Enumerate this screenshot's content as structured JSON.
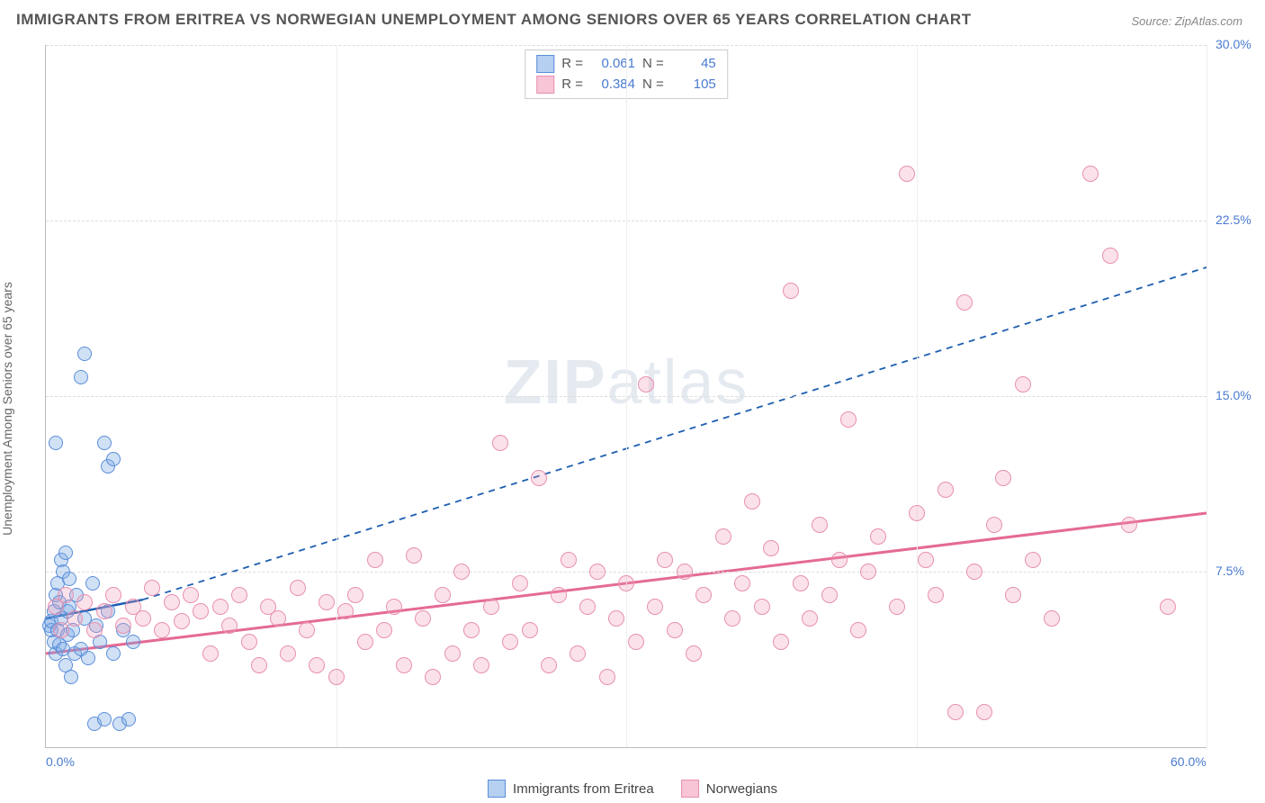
{
  "title": "IMMIGRANTS FROM ERITREA VS NORWEGIAN UNEMPLOYMENT AMONG SENIORS OVER 65 YEARS CORRELATION CHART",
  "source_label": "Source: ",
  "source_value": "ZipAtlas.com",
  "y_axis_label": "Unemployment Among Seniors over 65 years",
  "watermark_pre": "ZIP",
  "watermark_post": "atlas",
  "chart": {
    "type": "scatter",
    "xlim": [
      0,
      60
    ],
    "ylim": [
      0,
      30
    ],
    "x_ticks": [
      0,
      15,
      30,
      45,
      60
    ],
    "x_tick_labels": [
      "0.0%",
      "",
      "",
      "",
      "60.0%"
    ],
    "y_ticks": [
      7.5,
      15.0,
      22.5,
      30.0
    ],
    "y_tick_labels": [
      "7.5%",
      "15.0%",
      "22.5%",
      "30.0%"
    ],
    "grid_color": "#dddddd",
    "background_color": "#ffffff",
    "marker_radius_blue": 7,
    "marker_radius_pink": 8,
    "series": [
      {
        "name": "Immigrants from Eritrea",
        "color_fill": "rgba(120,170,230,0.35)",
        "color_stroke": "#5a8dd8",
        "R": 0.061,
        "N": 45,
        "trend": {
          "x1": 0,
          "y1": 5.5,
          "x2": 5,
          "y2": 6.3,
          "solid": true,
          "dash_x2": 60,
          "dash_y2": 20.5,
          "stroke": "#1f5fb0",
          "width": 2.5
        },
        "points": [
          [
            0.2,
            5.2
          ],
          [
            0.3,
            5.0
          ],
          [
            0.3,
            5.4
          ],
          [
            0.4,
            4.5
          ],
          [
            0.4,
            5.8
          ],
          [
            0.5,
            6.5
          ],
          [
            0.5,
            4.0
          ],
          [
            0.6,
            7.0
          ],
          [
            0.6,
            5.0
          ],
          [
            0.7,
            4.4
          ],
          [
            0.7,
            6.2
          ],
          [
            0.8,
            8.0
          ],
          [
            0.8,
            5.5
          ],
          [
            0.9,
            4.2
          ],
          [
            0.9,
            7.5
          ],
          [
            1.0,
            8.3
          ],
          [
            1.0,
            3.5
          ],
          [
            1.1,
            5.8
          ],
          [
            1.1,
            4.8
          ],
          [
            1.2,
            6.0
          ],
          [
            1.2,
            7.2
          ],
          [
            1.3,
            3.0
          ],
          [
            1.4,
            5.0
          ],
          [
            1.5,
            4.0
          ],
          [
            1.6,
            6.5
          ],
          [
            1.8,
            4.2
          ],
          [
            2.0,
            5.5
          ],
          [
            2.2,
            3.8
          ],
          [
            2.4,
            7.0
          ],
          [
            2.5,
            1.0
          ],
          [
            2.6,
            5.2
          ],
          [
            2.8,
            4.5
          ],
          [
            3.0,
            1.2
          ],
          [
            3.2,
            5.8
          ],
          [
            3.5,
            4.0
          ],
          [
            3.8,
            1.0
          ],
          [
            4.0,
            5.0
          ],
          [
            4.3,
            1.2
          ],
          [
            4.5,
            4.5
          ],
          [
            2.0,
            16.8
          ],
          [
            1.8,
            15.8
          ],
          [
            3.0,
            13.0
          ],
          [
            3.2,
            12.0
          ],
          [
            3.5,
            12.3
          ],
          [
            0.5,
            13.0
          ]
        ]
      },
      {
        "name": "Norwegians",
        "color_fill": "rgba(240,150,180,0.28)",
        "color_stroke": "#e890b0",
        "R": 0.384,
        "N": 105,
        "trend": {
          "x1": 0,
          "y1": 4.0,
          "x2": 60,
          "y2": 10.0,
          "solid": true,
          "stroke": "#e46a96",
          "width": 3
        },
        "points": [
          [
            0.5,
            6.0
          ],
          [
            0.8,
            5.0
          ],
          [
            1.0,
            6.5
          ],
          [
            1.5,
            5.5
          ],
          [
            2.0,
            6.2
          ],
          [
            2.5,
            5.0
          ],
          [
            3.0,
            5.8
          ],
          [
            3.5,
            6.5
          ],
          [
            4.0,
            5.2
          ],
          [
            4.5,
            6.0
          ],
          [
            5.0,
            5.5
          ],
          [
            5.5,
            6.8
          ],
          [
            6.0,
            5.0
          ],
          [
            6.5,
            6.2
          ],
          [
            7.0,
            5.4
          ],
          [
            7.5,
            6.5
          ],
          [
            8.0,
            5.8
          ],
          [
            8.5,
            4.0
          ],
          [
            9.0,
            6.0
          ],
          [
            9.5,
            5.2
          ],
          [
            10.0,
            6.5
          ],
          [
            10.5,
            4.5
          ],
          [
            11.0,
            3.5
          ],
          [
            11.5,
            6.0
          ],
          [
            12.0,
            5.5
          ],
          [
            12.5,
            4.0
          ],
          [
            13.0,
            6.8
          ],
          [
            13.5,
            5.0
          ],
          [
            14.0,
            3.5
          ],
          [
            14.5,
            6.2
          ],
          [
            15.0,
            3.0
          ],
          [
            15.5,
            5.8
          ],
          [
            16.0,
            6.5
          ],
          [
            16.5,
            4.5
          ],
          [
            17.0,
            8.0
          ],
          [
            17.5,
            5.0
          ],
          [
            18.0,
            6.0
          ],
          [
            18.5,
            3.5
          ],
          [
            19.0,
            8.2
          ],
          [
            19.5,
            5.5
          ],
          [
            20.0,
            3.0
          ],
          [
            20.5,
            6.5
          ],
          [
            21.0,
            4.0
          ],
          [
            21.5,
            7.5
          ],
          [
            22.0,
            5.0
          ],
          [
            22.5,
            3.5
          ],
          [
            23.0,
            6.0
          ],
          [
            23.5,
            13.0
          ],
          [
            24.0,
            4.5
          ],
          [
            24.5,
            7.0
          ],
          [
            25.0,
            5.0
          ],
          [
            25.5,
            11.5
          ],
          [
            26.0,
            3.5
          ],
          [
            26.5,
            6.5
          ],
          [
            27.0,
            8.0
          ],
          [
            27.5,
            4.0
          ],
          [
            28.0,
            6.0
          ],
          [
            28.5,
            7.5
          ],
          [
            29.0,
            3.0
          ],
          [
            29.5,
            5.5
          ],
          [
            30.0,
            7.0
          ],
          [
            30.5,
            4.5
          ],
          [
            31.0,
            15.5
          ],
          [
            31.5,
            6.0
          ],
          [
            32.0,
            8.0
          ],
          [
            32.5,
            5.0
          ],
          [
            33.0,
            7.5
          ],
          [
            33.5,
            4.0
          ],
          [
            34.0,
            6.5
          ],
          [
            35.0,
            9.0
          ],
          [
            35.5,
            5.5
          ],
          [
            36.0,
            7.0
          ],
          [
            36.5,
            10.5
          ],
          [
            37.0,
            6.0
          ],
          [
            37.5,
            8.5
          ],
          [
            38.0,
            4.5
          ],
          [
            38.5,
            19.5
          ],
          [
            39.0,
            7.0
          ],
          [
            39.5,
            5.5
          ],
          [
            40.0,
            9.5
          ],
          [
            40.5,
            6.5
          ],
          [
            41.0,
            8.0
          ],
          [
            41.5,
            14.0
          ],
          [
            42.0,
            5.0
          ],
          [
            42.5,
            7.5
          ],
          [
            43.0,
            9.0
          ],
          [
            44.0,
            6.0
          ],
          [
            44.5,
            24.5
          ],
          [
            45.0,
            10.0
          ],
          [
            45.5,
            8.0
          ],
          [
            46.0,
            6.5
          ],
          [
            46.5,
            11.0
          ],
          [
            47.0,
            1.5
          ],
          [
            47.5,
            19.0
          ],
          [
            48.0,
            7.5
          ],
          [
            48.5,
            1.5
          ],
          [
            49.0,
            9.5
          ],
          [
            49.5,
            11.5
          ],
          [
            50.0,
            6.5
          ],
          [
            50.5,
            15.5
          ],
          [
            51.0,
            8.0
          ],
          [
            52.0,
            5.5
          ],
          [
            54.0,
            24.5
          ],
          [
            55.0,
            21.0
          ],
          [
            56.0,
            9.5
          ],
          [
            58.0,
            6.0
          ]
        ]
      }
    ]
  },
  "stats_box": {
    "rows": [
      {
        "swatch": "blue",
        "r_label": "R =",
        "r_val": "0.061",
        "n_label": "N =",
        "n_val": "45"
      },
      {
        "swatch": "pink",
        "r_label": "R =",
        "r_val": "0.384",
        "n_label": "N =",
        "n_val": "105"
      }
    ]
  },
  "bottom_legend": [
    {
      "swatch": "blue",
      "label": "Immigrants from Eritrea"
    },
    {
      "swatch": "pink",
      "label": "Norwegians"
    }
  ]
}
